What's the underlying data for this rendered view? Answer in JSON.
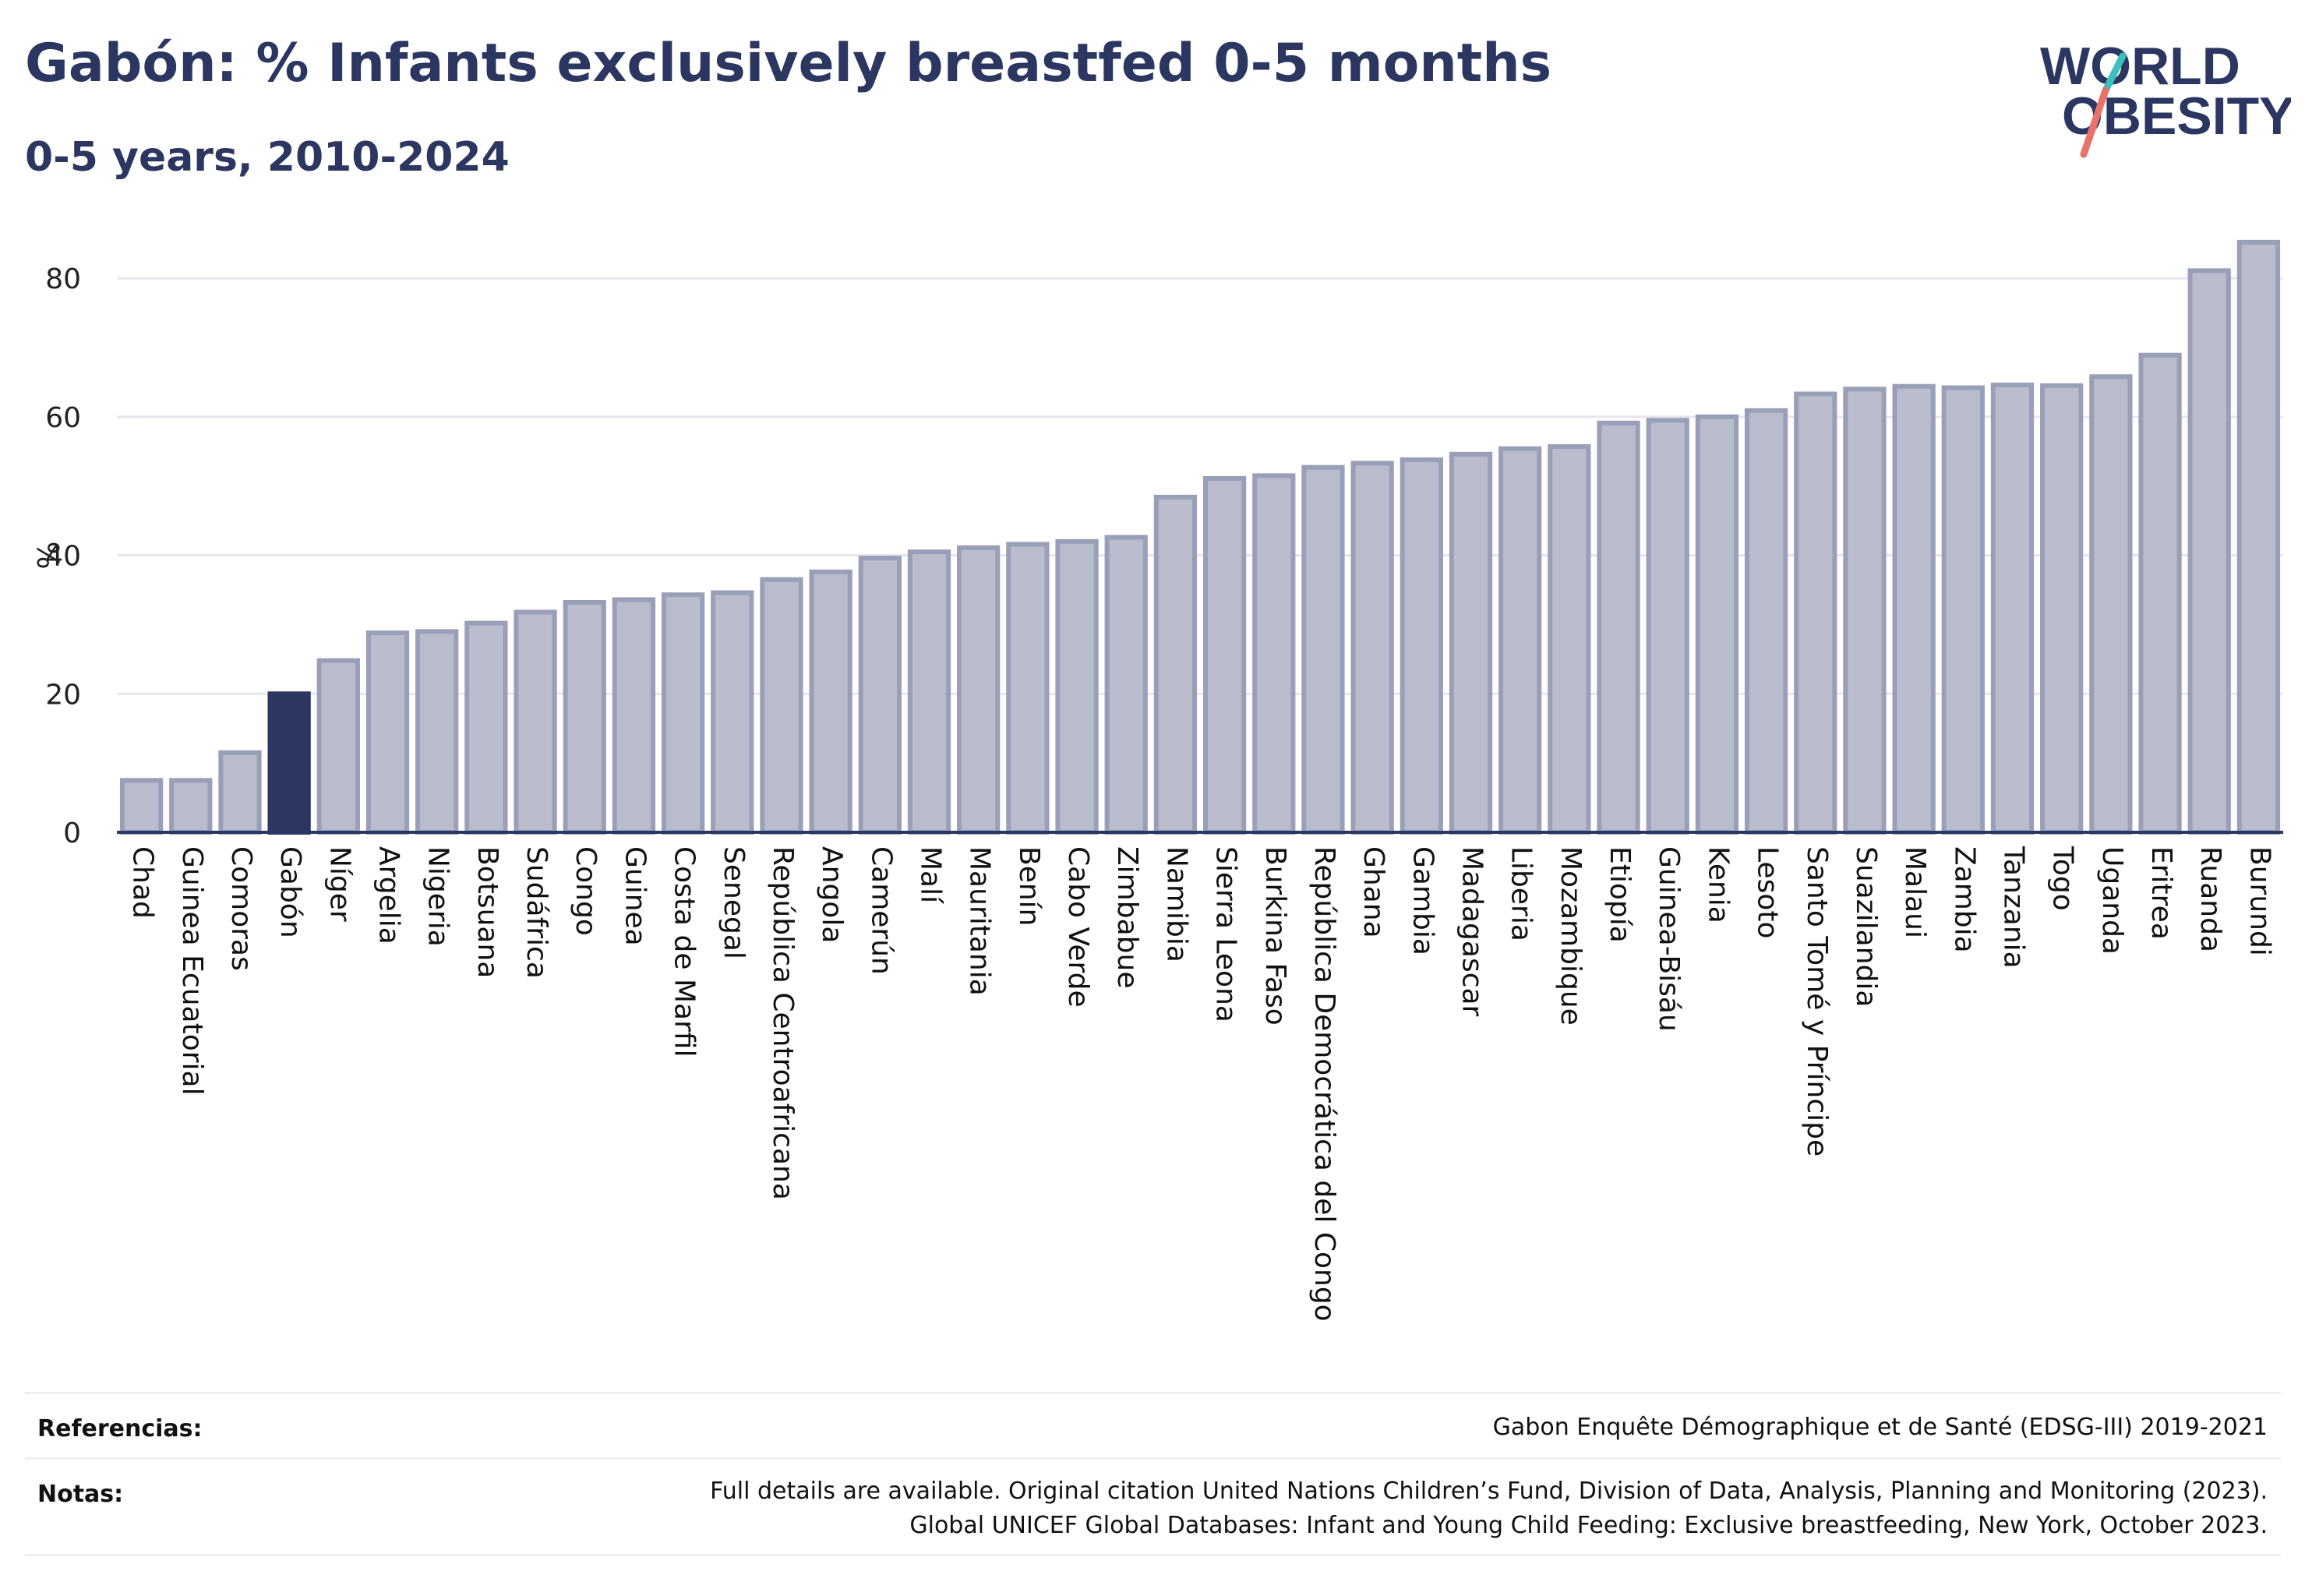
{
  "header": {
    "title": "Gabón: % Infants exclusively breastfed 0-5 months",
    "subtitle": "0-5 years, 2010-2024"
  },
  "logo": {
    "line1": "WORLD",
    "line2": "OBESITY"
  },
  "colors": {
    "highlight": "#2b3661",
    "bar_fill": "#b9bccc",
    "bar_stroke": "#9a9fb8",
    "grid": "#e6e6ee",
    "logo_teal": "#3cbfc0",
    "logo_coral": "#e8736a"
  },
  "chart_data": {
    "type": "bar",
    "ylabel": "%",
    "xlabel": "",
    "ylim": [
      0,
      88
    ],
    "yticks": [
      0,
      20,
      40,
      60,
      80
    ],
    "grid": true,
    "highlight": "Gabón",
    "categories": [
      "Chad",
      "Guinea Ecuatorial",
      "Comoras",
      "Gabón",
      "Níger",
      "Argelia",
      "Nigeria",
      "Botsuana",
      "Sudáfrica",
      "Congo",
      "Guinea",
      "Costa de Marfil",
      "Senegal",
      "República Centroafricana",
      "Angola",
      "Camerún",
      "Malí",
      "Mauritania",
      "Benín",
      "Cabo Verde",
      "Zimbabue",
      "Namibia",
      "Sierra Leona",
      "Burkina Faso",
      "República Democrática del Congo",
      "Ghana",
      "Gambia",
      "Madagascar",
      "Liberia",
      "Mozambique",
      "Etiopía",
      "Guinea-Bisáu",
      "Kenia",
      "Lesoto",
      "Santo Tomé y Príncipe",
      "Suazilandia",
      "Malaui",
      "Zambia",
      "Tanzania",
      "Togo",
      "Uganda",
      "Eritrea",
      "Ruanda",
      "Burundi"
    ],
    "values": [
      7.5,
      7.5,
      11.5,
      20.0,
      24.8,
      28.8,
      29.0,
      30.2,
      31.8,
      33.2,
      33.6,
      34.3,
      34.6,
      36.5,
      37.6,
      39.6,
      40.5,
      41.1,
      41.6,
      42.0,
      42.6,
      48.4,
      51.1,
      51.5,
      52.7,
      53.3,
      53.8,
      54.6,
      55.4,
      55.7,
      59.1,
      59.5,
      60.0,
      60.9,
      63.3,
      64.0,
      64.4,
      64.2,
      64.6,
      64.5,
      65.8,
      68.9,
      81.1,
      85.2
    ]
  },
  "footer": {
    "references_label": "Referencias:",
    "references_text": "Gabon Enquête Démographique et de Santé (EDSG-III) 2019-2021",
    "notes_label": "Notas:",
    "notes_line1": "Full details are available. Original citation United Nations Children’s Fund, Division of Data, Analysis, Planning and Monitoring (2023).",
    "notes_line2": "Global UNICEF Global Databases: Infant and Young Child Feeding: Exclusive breastfeeding, New York, October 2023."
  }
}
